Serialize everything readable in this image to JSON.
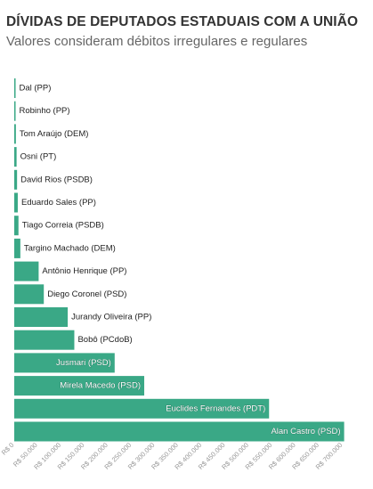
{
  "header": {
    "title": "DÍVIDAS DE DEPUTADOS ESTADUAIS COM A UNIÃO",
    "subtitle": "Valores consideram débitos irregulares e regulares"
  },
  "chart_data": {
    "type": "bar",
    "orientation": "horizontal",
    "title": "DÍVIDAS DE DEPUTADOS ESTADUAIS COM A UNIÃO",
    "subtitle": "Valores consideram débitos irregulares e regulares",
    "xlabel": "",
    "ylabel": "",
    "categories": [
      "Dal (PP)",
      "Robinho (PP)",
      "Tom Araújo (DEM)",
      "Osni (PT)",
      "David Rios (PSDB)",
      "Eduardo Sales (PP)",
      "Tiago Correia (PSDB)",
      "Targino Machado (DEM)",
      "Antônio Henrique (PP)",
      "Diego Coronel (PSD)",
      "Jurandy Oliveira (PP)",
      "Bobô (PCdoB)",
      "Jusmari (PSD)",
      "Mirela Macedo (PSD)",
      "Euclides Fernandes (PDT)",
      "Alan Castro (PSD)"
    ],
    "values": [
      1500,
      2500,
      3500,
      5000,
      6000,
      7500,
      9000,
      13000,
      52000,
      63000,
      114000,
      128000,
      214000,
      277000,
      543000,
      703000
    ],
    "xlim": [
      0,
      700000
    ],
    "xticks": [
      0,
      50000,
      100000,
      150000,
      200000,
      250000,
      300000,
      350000,
      400000,
      450000,
      500000,
      550000,
      600000,
      650000,
      700000
    ],
    "xtick_labels": [
      "R$ 0",
      "R$ 50.000",
      "R$ 100.000",
      "R$ 150.000",
      "R$ 200.000",
      "R$ 250.000",
      "R$ 300.000",
      "R$ 350.000",
      "R$ 400.000",
      "R$ 450.000",
      "R$ 500.000",
      "R$ 550.000",
      "R$ 600.000",
      "R$ 650.000",
      "R$ 700.000"
    ],
    "grid": false,
    "legend": "none",
    "bar_color": "#3aa886",
    "label_color_outside": "#222222",
    "label_color_inside": "#ffffff"
  }
}
